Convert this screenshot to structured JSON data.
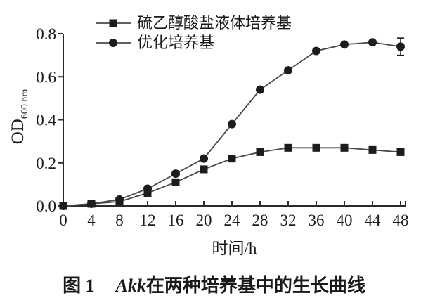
{
  "chart_data": {
    "type": "line",
    "title": "",
    "xlabel": "时间/h",
    "ylabel": "OD",
    "ylabel_subscript": "600 nm",
    "x": [
      0,
      4,
      8,
      12,
      16,
      20,
      24,
      28,
      32,
      36,
      40,
      44,
      48
    ],
    "xlim": [
      0,
      48
    ],
    "ylim": [
      0,
      0.8
    ],
    "yticks": [
      0,
      0.2,
      0.4,
      0.6,
      0.8
    ],
    "grid": false,
    "legend_position": "top-left-inside",
    "series": [
      {
        "name": "硫乙醇酸盐液体培养基",
        "marker": "square",
        "values": [
          0.0,
          0.01,
          0.02,
          0.06,
          0.11,
          0.17,
          0.22,
          0.25,
          0.27,
          0.27,
          0.27,
          0.26,
          0.25
        ]
      },
      {
        "name": "优化培养基",
        "marker": "circle",
        "values": [
          0.0,
          0.01,
          0.03,
          0.08,
          0.15,
          0.22,
          0.38,
          0.54,
          0.63,
          0.72,
          0.75,
          0.76,
          0.74
        ],
        "error_bars": [
          {
            "x": 48,
            "plus_minus": 0.04
          }
        ]
      }
    ],
    "colors": {
      "line": "#4a4a4a",
      "marker": "#1c1c1c",
      "axis": "#2b2b2b",
      "text": "#1a1a1a"
    }
  },
  "caption": {
    "figure_label": "图 1",
    "organism": "Akk",
    "title_rest": "在两种培养基中的生长曲线"
  }
}
